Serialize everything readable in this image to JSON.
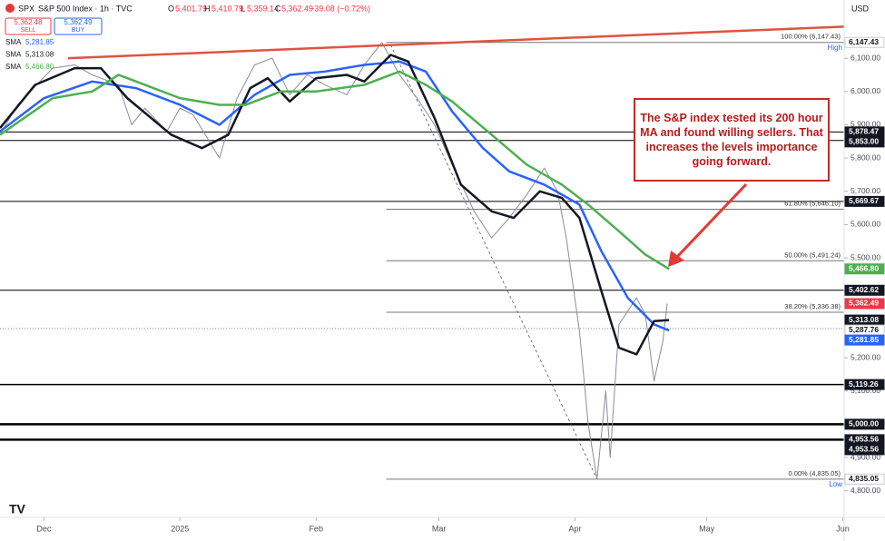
{
  "header": {
    "symbol": "SPX",
    "title": "S&P 500 Index · 1h · TVC",
    "open_label": "O",
    "open": "5,401.79",
    "high_label": "H",
    "high": "5,410.79",
    "low_label": "L",
    "low": "5,359.14",
    "close_label": "C",
    "close": "5,362.49",
    "change": "−39.08 (−0.72%)",
    "currency": "USD"
  },
  "trade": {
    "sell_price": "5,362.48",
    "sell": "SELL",
    "buy_price": "5,362.49",
    "buy": "BUY"
  },
  "annotation": "The S&P index tested its 200 hour MA and found willing sellers.  That increases the levels importance going forward.",
  "chart_data": {
    "type": "line",
    "xlim": [
      0,
      192.3
    ],
    "xticks": [
      {
        "value": 10,
        "label": "Dec"
      },
      {
        "value": 41,
        "label": "2025"
      },
      {
        "value": 72,
        "label": "Feb"
      },
      {
        "value": 100,
        "label": "Mar"
      },
      {
        "value": 131,
        "label": "Apr"
      },
      {
        "value": 161,
        "label": "May"
      },
      {
        "value": 192,
        "label": "Jun"
      }
    ],
    "ylim": [
      4720,
      6275
    ],
    "yticks": [
      {
        "value": 6100,
        "label": "6,100.00"
      },
      {
        "value": 6000,
        "label": "6,000.00"
      },
      {
        "value": 5900,
        "label": "5,900.00"
      },
      {
        "value": 5800,
        "label": "5,800.00"
      },
      {
        "value": 5700,
        "label": "5,700.00"
      },
      {
        "value": 5600,
        "label": "5,600.00"
      },
      {
        "value": 5500,
        "label": "5,500.00"
      },
      {
        "value": 5400,
        "label": "5,400.00"
      },
      {
        "value": 5300,
        "label": "5,300.00"
      },
      {
        "value": 5200,
        "label": "5,200.00"
      },
      {
        "value": 5100,
        "label": "5,100.00"
      },
      {
        "value": 5000,
        "label": "5,000.00"
      },
      {
        "value": 4900,
        "label": "4,900.00"
      },
      {
        "value": 4800,
        "label": "4,800.00"
      }
    ],
    "series": [
      {
        "name": "S&P 500 Index",
        "color": "#8a8d96",
        "width": 1,
        "x": [
          0,
          4,
          12,
          17,
          21,
          27,
          30,
          33,
          38,
          41,
          44,
          50,
          54,
          58,
          62,
          66,
          70,
          74,
          79,
          83,
          87,
          91,
          95,
          99,
          103,
          108,
          112,
          116,
          120,
          124,
          127,
          129,
          132,
          134,
          136,
          138,
          139,
          141,
          145,
          147,
          149,
          151,
          152
        ],
        "values": [
          5870,
          5960,
          6070,
          6080,
          6050,
          6020,
          5900,
          5950,
          5880,
          5950,
          5930,
          5800,
          5980,
          6080,
          6100,
          5990,
          6050,
          6020,
          5990,
          6080,
          6147.43,
          6050,
          5980,
          5900,
          5780,
          5640,
          5560,
          5620,
          5690,
          5770,
          5700,
          5560,
          5280,
          5000,
          4835.05,
          5100,
          4900,
          5300,
          5380,
          5330,
          5130,
          5250,
          5362.49
        ]
      },
      {
        "name": "SMA",
        "legend_value": "5,281.85",
        "color": "#2962ff",
        "width": 2.5,
        "x": [
          0,
          10,
          21,
          31,
          41,
          50,
          58,
          66,
          74,
          83,
          91,
          97,
          103,
          110,
          116,
          124,
          132,
          137,
          143,
          149,
          152.4
        ],
        "values": [
          5880,
          5980,
          6030,
          6010,
          5960,
          5900,
          5990,
          6050,
          6060,
          6080,
          6090,
          6060,
          5940,
          5830,
          5760,
          5720,
          5660,
          5520,
          5380,
          5300,
          5281.85
        ]
      },
      {
        "name": "SMA",
        "legend_value": "5,313.08",
        "color": "#131722",
        "width": 2.5,
        "x": [
          0,
          8,
          17,
          23,
          29,
          39,
          46,
          52,
          57,
          61,
          66,
          72,
          79,
          83,
          89,
          93,
          99,
          105,
          112,
          117,
          123,
          128,
          132,
          137,
          141,
          145,
          149,
          152.4
        ],
        "values": [
          5890,
          6020,
          6070,
          6070,
          5980,
          5870,
          5830,
          5870,
          6010,
          6040,
          5970,
          6040,
          6050,
          6030,
          6110,
          6090,
          5920,
          5720,
          5640,
          5620,
          5700,
          5680,
          5620,
          5400,
          5230,
          5210,
          5310,
          5313.08
        ]
      },
      {
        "name": "SMA",
        "legend_value": "5,466.80",
        "color": "#4caf50",
        "width": 2.5,
        "x": [
          0,
          12,
          21,
          27,
          33,
          41,
          50,
          56,
          64,
          72,
          83,
          91,
          97,
          103,
          112,
          120,
          128,
          134,
          141,
          147,
          152.4
        ],
        "values": [
          5870,
          5980,
          6000,
          6050,
          6020,
          5980,
          5960,
          5960,
          6000,
          6000,
          6020,
          6060,
          6020,
          5970,
          5870,
          5780,
          5720,
          5660,
          5580,
          5510,
          5466.8
        ]
      }
    ],
    "trendline": {
      "color": "#e0533f",
      "x": [
        15.5,
        192.3
      ],
      "values": [
        6100,
        6195
      ]
    },
    "dashed_line": {
      "color": "#555555",
      "x": [
        89,
        136
      ],
      "values": [
        6140,
        4835.05
      ]
    },
    "fib": {
      "from": 88,
      "levels": [
        {
          "value": 6147.43,
          "label": "100.00% (6,147.43)",
          "tag": "High"
        },
        {
          "value": 5646.1,
          "label": "61.80% (5,646.10)"
        },
        {
          "value": 5491.24,
          "label": "50.00% (5,491.24)"
        },
        {
          "value": 5336.38,
          "label": "38.20% (5,336.38)"
        },
        {
          "value": 4835.05,
          "label": "0.00% (4,835.05)",
          "tag": "Low"
        }
      ]
    },
    "levels": [
      {
        "value": 5878.47,
        "width": 1
      },
      {
        "value": 5853.0,
        "width": 1
      },
      {
        "value": 5669.67,
        "width": 1
      },
      {
        "value": 5402.62,
        "width": 1
      },
      {
        "value": 5119.26,
        "width": 1.5
      },
      {
        "value": 5000.0,
        "width": 2.5
      },
      {
        "value": 4953.56,
        "width": 2.5
      },
      {
        "value": 5287.76,
        "width": 1,
        "dash": true
      }
    ],
    "tags": [
      {
        "value": 6147.43,
        "label": "6,147.43",
        "bg": "#ffffff",
        "fg": "#131722"
      },
      {
        "value": 5878.47,
        "label": "5,878.47",
        "bg": "#131722",
        "fg": "#ffffff"
      },
      {
        "value": 5853.0,
        "label": "5,853.00",
        "bg": "#131722",
        "fg": "#ffffff"
      },
      {
        "value": 5669.67,
        "label": "5,669.67",
        "bg": "#131722",
        "fg": "#ffffff"
      },
      {
        "value": 5466.8,
        "label": "5,466.80",
        "bg": "#4caf50",
        "fg": "#ffffff"
      },
      {
        "value": 5402.62,
        "label": "5,402.62",
        "bg": "#131722",
        "fg": "#ffffff"
      },
      {
        "value": 5362.49,
        "label": "5,362.49",
        "bg": "#f23645",
        "fg": "#ffffff"
      },
      {
        "value": 5313.08,
        "label": "5,313.08",
        "bg": "#131722",
        "fg": "#ffffff"
      },
      {
        "value": 5287.76,
        "label": "5,287.76",
        "bg": "#ffffff",
        "fg": "#131722"
      },
      {
        "value": 5281.85,
        "label": "5,281.85",
        "bg": "#2962ff",
        "fg": "#ffffff"
      },
      {
        "value": 5119.26,
        "label": "5,119.26",
        "bg": "#131722",
        "fg": "#ffffff"
      },
      {
        "value": 5000.0,
        "label": "5,000.00",
        "bg": "#131722",
        "fg": "#ffffff"
      },
      {
        "value": 4953.56,
        "label": "4,953.56",
        "bg": "#131722",
        "fg": "#ffffff"
      },
      {
        "value": 4953.56,
        "label": "4,953.56",
        "bg": "#131722",
        "fg": "#ffffff"
      },
      {
        "value": 4835.05,
        "label": "4,835.05",
        "bg": "#ffffff",
        "fg": "#131722"
      }
    ]
  }
}
